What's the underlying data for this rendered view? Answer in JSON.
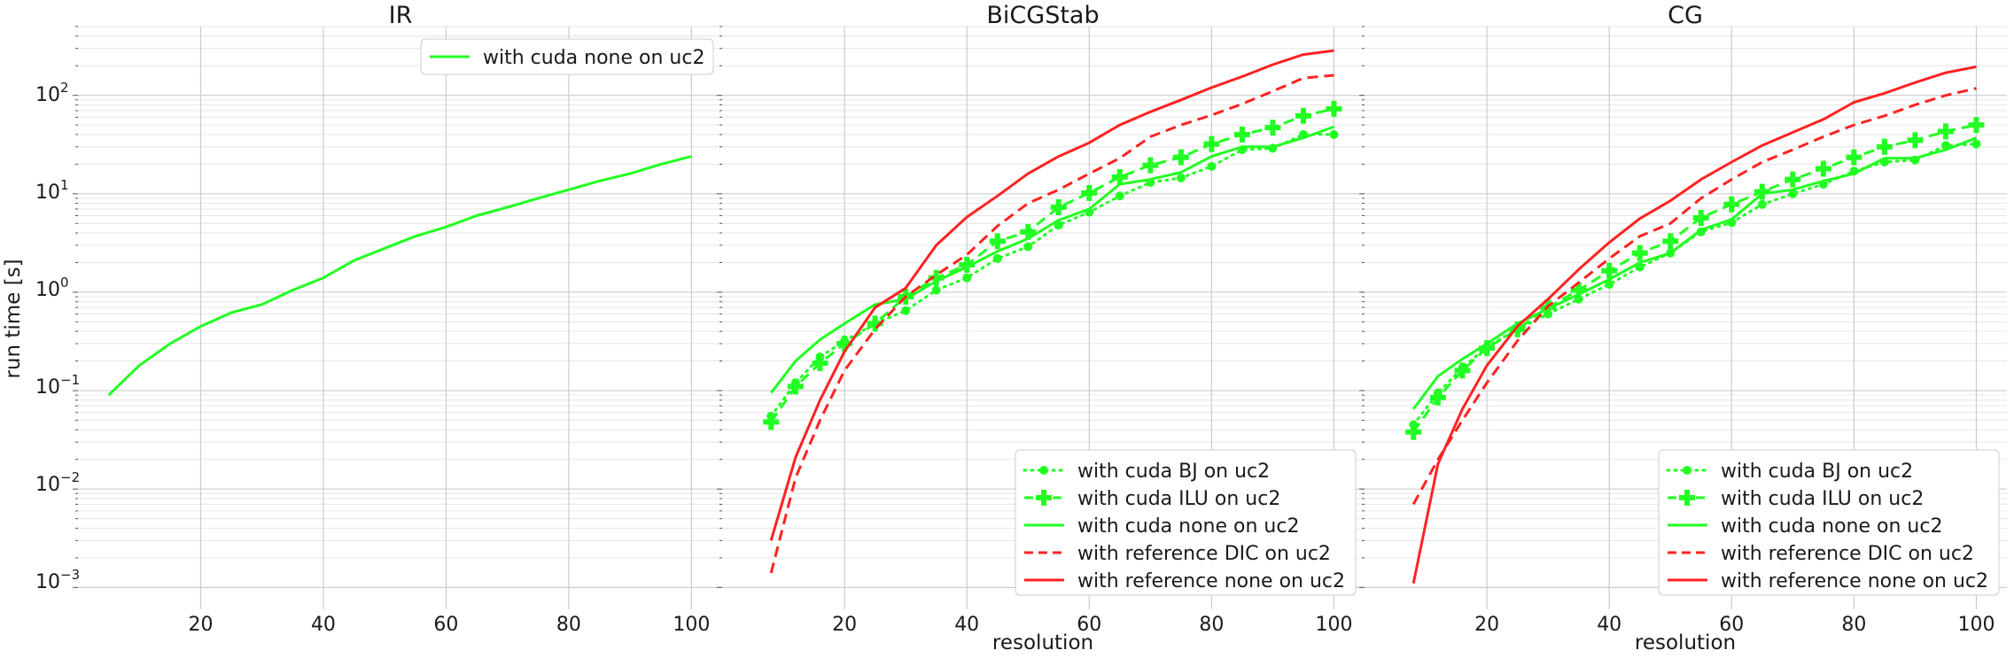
{
  "chart_data": {
    "type": "line",
    "ylabel": "run time [s]",
    "yscale": "log",
    "ylim": [
      0.0006,
      500
    ],
    "xlim": [
      0,
      105
    ],
    "xticks": [
      20,
      40,
      60,
      80,
      100
    ],
    "ytick_labels": [
      "10^-3",
      "10^-2",
      "10^-1",
      "10^0",
      "10^1",
      "10^2"
    ],
    "colors": {
      "cuda": "#22ff22",
      "reference": "#ff2222"
    },
    "panels": [
      {
        "title": "IR",
        "xlabel": "",
        "legend_position": "top-center",
        "series": [
          {
            "name": "with cuda none on uc2",
            "color": "#22ff22",
            "style": "solid",
            "marker": "none",
            "x": [
              5,
              10,
              15,
              20,
              25,
              30,
              35,
              40,
              45,
              50,
              55,
              60,
              65,
              70,
              75,
              80,
              85,
              90,
              95,
              100
            ],
            "y": [
              0.09,
              0.18,
              0.3,
              0.45,
              0.62,
              0.75,
              1.05,
              1.4,
              2.1,
              2.8,
              3.7,
              4.6,
              6.0,
              7.3,
              9.0,
              11.0,
              13.5,
              16.0,
              20.0,
              24.0
            ]
          }
        ]
      },
      {
        "title": "BiCGStab",
        "xlabel": "resolution",
        "legend_position": "lower-right",
        "series": [
          {
            "name": "with cuda BJ on uc2",
            "color": "#22ff22",
            "style": "dotted",
            "marker": "dot",
            "x": [
              8,
              12,
              16,
              20,
              25,
              30,
              35,
              40,
              45,
              50,
              55,
              60,
              65,
              70,
              75,
              80,
              85,
              90,
              95,
              100
            ],
            "y": [
              0.055,
              0.12,
              0.22,
              0.32,
              0.48,
              0.65,
              1.05,
              1.4,
              2.2,
              2.9,
              4.8,
              6.5,
              9.5,
              13.0,
              14.5,
              19.0,
              28.0,
              29.0,
              40.0,
              40.0
            ]
          },
          {
            "name": "with cuda ILU on uc2",
            "color": "#22ff22",
            "style": "dashed",
            "marker": "plus",
            "x": [
              8,
              12,
              16,
              20,
              25,
              30,
              35,
              40,
              45,
              50,
              55,
              60,
              65,
              70,
              75,
              80,
              85,
              90,
              95,
              100
            ],
            "y": [
              0.048,
              0.11,
              0.19,
              0.3,
              0.48,
              0.9,
              1.4,
              1.9,
              3.3,
              4.1,
              7.3,
              10.2,
              14.8,
              19.5,
              23.5,
              32.0,
              40.0,
              47.0,
              62.0,
              73.0
            ]
          },
          {
            "name": "with cuda none on uc2",
            "color": "#22ff22",
            "style": "solid",
            "marker": "none",
            "x": [
              8,
              12,
              16,
              20,
              25,
              30,
              35,
              40,
              45,
              50,
              55,
              60,
              65,
              70,
              75,
              80,
              85,
              90,
              95,
              100
            ],
            "y": [
              0.095,
              0.2,
              0.33,
              0.48,
              0.75,
              0.85,
              1.3,
              1.8,
              2.6,
              3.5,
              5.4,
              7.0,
              12.5,
              14.0,
              16.5,
              24.0,
              30.0,
              30.0,
              37.0,
              48.0
            ]
          },
          {
            "name": "with reference DIC on uc2",
            "color": "#ff2222",
            "style": "dashed",
            "marker": "none",
            "x": [
              8,
              12,
              16,
              20,
              25,
              30,
              35,
              40,
              45,
              50,
              55,
              60,
              65,
              70,
              75,
              80,
              85,
              90,
              95,
              100
            ],
            "y": [
              0.0014,
              0.013,
              0.05,
              0.16,
              0.42,
              0.9,
              1.5,
              2.4,
              4.7,
              8.0,
              11.0,
              16.0,
              23.0,
              38.0,
              50.0,
              63.0,
              82.0,
              110.0,
              150.0,
              160.0
            ]
          },
          {
            "name": "with reference none on uc2",
            "color": "#ff2222",
            "style": "solid",
            "marker": "none",
            "x": [
              8,
              12,
              16,
              20,
              25,
              30,
              35,
              40,
              45,
              50,
              55,
              60,
              65,
              70,
              75,
              80,
              85,
              90,
              95,
              100
            ],
            "y": [
              0.003,
              0.021,
              0.08,
              0.25,
              0.7,
              1.1,
              3.0,
              5.8,
              9.5,
              16.0,
              24.0,
              33.0,
              50.0,
              68.0,
              90.0,
              120.0,
              155.0,
              205.0,
              260.0,
              285.0
            ]
          }
        ]
      },
      {
        "title": "CG",
        "xlabel": "resolution",
        "legend_position": "lower-right",
        "series": [
          {
            "name": "with cuda BJ on uc2",
            "color": "#22ff22",
            "style": "dotted",
            "marker": "dot",
            "x": [
              8,
              12,
              16,
              20,
              25,
              30,
              35,
              40,
              45,
              50,
              55,
              60,
              65,
              70,
              75,
              80,
              85,
              90,
              95,
              100
            ],
            "y": [
              0.045,
              0.095,
              0.17,
              0.28,
              0.42,
              0.6,
              0.85,
              1.2,
              1.8,
              2.5,
              4.1,
              5.1,
              7.8,
              10.0,
              12.5,
              17.0,
              21.0,
              22.0,
              31.0,
              32.0
            ]
          },
          {
            "name": "with cuda ILU on uc2",
            "color": "#22ff22",
            "style": "dashed",
            "marker": "plus",
            "x": [
              8,
              12,
              16,
              20,
              25,
              30,
              35,
              40,
              45,
              50,
              55,
              60,
              65,
              70,
              75,
              80,
              85,
              90,
              95,
              100
            ],
            "y": [
              0.038,
              0.085,
              0.16,
              0.27,
              0.42,
              0.7,
              1.05,
              1.65,
              2.5,
              3.3,
              5.7,
              7.8,
              10.5,
              14.0,
              18.0,
              23.5,
              30.0,
              35.0,
              43.0,
              50.0
            ]
          },
          {
            "name": "with cuda none on uc2",
            "color": "#22ff22",
            "style": "solid",
            "marker": "none",
            "x": [
              8,
              12,
              16,
              20,
              25,
              30,
              35,
              40,
              45,
              50,
              55,
              60,
              65,
              70,
              75,
              80,
              85,
              90,
              95,
              100
            ],
            "y": [
              0.065,
              0.14,
              0.21,
              0.3,
              0.48,
              0.68,
              0.95,
              1.35,
              2.0,
              2.5,
              4.3,
              5.5,
              10.0,
              11.0,
              13.5,
              16.0,
              23.0,
              23.0,
              28.0,
              37.0
            ]
          },
          {
            "name": "with reference DIC on uc2",
            "color": "#ff2222",
            "style": "dashed",
            "marker": "none",
            "x": [
              8,
              12,
              16,
              20,
              25,
              30,
              35,
              40,
              45,
              50,
              55,
              60,
              65,
              70,
              75,
              80,
              85,
              90,
              95,
              100
            ],
            "y": [
              0.007,
              0.02,
              0.05,
              0.12,
              0.32,
              0.72,
              1.25,
              2.2,
              3.7,
              5.0,
              9.0,
              14.0,
              21.0,
              28.0,
              38.0,
              50.0,
              62.0,
              80.0,
              100.0,
              118.0
            ]
          },
          {
            "name": "with reference none on uc2",
            "color": "#ff2222",
            "style": "solid",
            "marker": "none",
            "x": [
              8,
              12,
              16,
              20,
              25,
              30,
              35,
              40,
              45,
              50,
              55,
              60,
              65,
              70,
              75,
              80,
              85,
              90,
              95,
              100
            ],
            "y": [
              0.0011,
              0.018,
              0.065,
              0.18,
              0.45,
              0.85,
              1.7,
              3.2,
              5.6,
              8.5,
              14.0,
              21.0,
              31.0,
              42.0,
              57.0,
              85.0,
              105.0,
              135.0,
              170.0,
              195.0
            ]
          }
        ]
      }
    ]
  }
}
